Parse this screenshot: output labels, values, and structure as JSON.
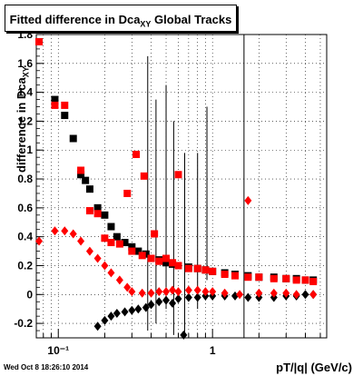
{
  "chart_data": {
    "type": "scatter",
    "title_main": "Fitted difference in Dca",
    "title_sub": "XY",
    "title_suffix": " Global Tracks",
    "xlabel": "pT/|q| (GeV/c)",
    "ylabel": "difference in Dca",
    "ylabel_sub": "XY",
    "x_scale": "log",
    "xlim": [
      0.072,
      5.5
    ],
    "ylim": [
      -0.3,
      1.8
    ],
    "grid": true,
    "y_ticks": [
      "-0.2",
      "0",
      "0.2",
      "0.4",
      "0.6",
      "0.8",
      "1",
      "1.2",
      "1.4",
      "1.6",
      "1.8"
    ],
    "x_ticks": [
      "10⁻¹",
      "1"
    ],
    "footer": "Wed Oct  8 18:26:10 2014",
    "series": [
      {
        "color": "#000000",
        "marker": "square",
        "points": [
          [
            0.095,
            1.35
          ],
          [
            0.11,
            1.24
          ],
          [
            0.125,
            1.08
          ],
          [
            0.14,
            0.83
          ],
          [
            0.15,
            0.79
          ],
          [
            0.16,
            0.73
          ],
          [
            0.18,
            0.6
          ],
          [
            0.2,
            0.55
          ],
          [
            0.22,
            0.47
          ],
          [
            0.24,
            0.4
          ],
          [
            0.27,
            0.36
          ],
          [
            0.3,
            0.33
          ],
          [
            0.33,
            0.3
          ],
          [
            0.37,
            0.28
          ],
          [
            0.4,
            0.25
          ],
          [
            0.45,
            0.24
          ],
          [
            0.5,
            0.22
          ],
          [
            0.55,
            0.21
          ],
          [
            0.6,
            0.2
          ],
          [
            0.7,
            0.19
          ],
          [
            0.8,
            0.18
          ],
          [
            0.9,
            0.17
          ],
          [
            1.0,
            0.16
          ],
          [
            1.2,
            0.15
          ],
          [
            1.4,
            0.14
          ],
          [
            1.7,
            0.13
          ],
          [
            2.0,
            0.12
          ],
          [
            2.5,
            0.12
          ],
          [
            3.0,
            0.11
          ],
          [
            3.5,
            0.11
          ],
          [
            4.0,
            0.1
          ],
          [
            4.5,
            0.1
          ]
        ]
      },
      {
        "color": "#ff0000",
        "marker": "square",
        "points": [
          [
            0.075,
            1.75
          ],
          [
            0.095,
            1.31
          ],
          [
            0.11,
            1.31
          ],
          [
            0.14,
            0.86
          ],
          [
            0.16,
            0.58
          ],
          [
            0.18,
            0.56
          ],
          [
            0.2,
            0.39
          ],
          [
            0.22,
            0.36
          ],
          [
            0.25,
            0.35
          ],
          [
            0.28,
            0.7
          ],
          [
            0.3,
            0.3
          ],
          [
            0.32,
            0.97
          ],
          [
            0.35,
            0.27
          ],
          [
            0.4,
            0.25
          ],
          [
            0.45,
            0.23
          ],
          [
            0.5,
            0.25
          ],
          [
            0.55,
            0.22
          ],
          [
            0.6,
            0.2
          ],
          [
            0.7,
            0.18
          ],
          [
            0.8,
            0.18
          ],
          [
            0.9,
            0.17
          ],
          [
            1.0,
            0.16
          ],
          [
            1.2,
            0.14
          ],
          [
            1.4,
            0.13
          ],
          [
            1.7,
            0.12
          ],
          [
            2.0,
            0.12
          ],
          [
            2.5,
            0.11
          ],
          [
            3.0,
            0.11
          ],
          [
            3.5,
            0.1
          ],
          [
            4.0,
            0.1
          ],
          [
            4.5,
            0.09
          ],
          [
            0.42,
            0.42
          ],
          [
            0.36,
            0.82
          ],
          [
            0.6,
            0.83
          ]
        ]
      },
      {
        "color": "#000000",
        "marker": "diamond",
        "points": [
          [
            0.18,
            -0.22
          ],
          [
            0.2,
            -0.18
          ],
          [
            0.22,
            -0.15
          ],
          [
            0.24,
            -0.13
          ],
          [
            0.27,
            -0.12
          ],
          [
            0.3,
            -0.11
          ],
          [
            0.33,
            -0.1
          ],
          [
            0.37,
            -0.09
          ],
          [
            0.4,
            -0.07
          ],
          [
            0.45,
            -0.05
          ],
          [
            0.5,
            -0.04
          ],
          [
            0.55,
            -0.06
          ],
          [
            0.6,
            -0.03
          ],
          [
            0.65,
            -0.28
          ],
          [
            0.7,
            -0.02
          ],
          [
            0.8,
            -0.02
          ],
          [
            0.9,
            -0.01
          ],
          [
            1.0,
            -0.01
          ],
          [
            1.2,
            -0.01
          ],
          [
            1.4,
            -0.01
          ],
          [
            1.7,
            -0.02
          ],
          [
            2.0,
            -0.02
          ],
          [
            2.5,
            -0.02
          ],
          [
            3.0,
            -0.01
          ],
          [
            3.5,
            -0.01
          ],
          [
            4.0,
            0.0
          ],
          [
            4.5,
            0.0
          ]
        ]
      },
      {
        "color": "#ff0000",
        "marker": "diamond",
        "points": [
          [
            0.075,
            0.37
          ],
          [
            0.095,
            0.44
          ],
          [
            0.11,
            0.44
          ],
          [
            0.125,
            0.42
          ],
          [
            0.14,
            0.37
          ],
          [
            0.16,
            0.3
          ],
          [
            0.18,
            0.25
          ],
          [
            0.2,
            0.2
          ],
          [
            0.22,
            0.15
          ],
          [
            0.25,
            0.1
          ],
          [
            0.28,
            0.05
          ],
          [
            0.3,
            0.02
          ],
          [
            0.35,
            0.01
          ],
          [
            0.4,
            0.01
          ],
          [
            0.45,
            0.02
          ],
          [
            0.5,
            0.02
          ],
          [
            0.55,
            0.03
          ],
          [
            0.6,
            0.02
          ],
          [
            0.7,
            0.03
          ],
          [
            0.8,
            0.03
          ],
          [
            0.9,
            0.02
          ],
          [
            1.0,
            0.02
          ],
          [
            1.2,
            0.01
          ],
          [
            1.5,
            0.0
          ],
          [
            1.7,
            0.65
          ],
          [
            2.0,
            0.01
          ],
          [
            2.5,
            0.01
          ],
          [
            3.0,
            0.01
          ],
          [
            3.5,
            0.0
          ],
          [
            4.5,
            0.0
          ]
        ]
      }
    ],
    "error_bars": [
      [
        0.38,
        -0.25,
        1.65
      ],
      [
        0.43,
        -0.2,
        1.35
      ],
      [
        0.5,
        -0.1,
        1.45
      ],
      [
        0.56,
        -0.28,
        1.2
      ],
      [
        0.66,
        -0.28,
        0.98
      ],
      [
        0.8,
        -0.1,
        0.98
      ],
      [
        0.92,
        0.1,
        1.3
      ],
      [
        1.6,
        -0.3,
        1.8
      ]
    ]
  }
}
